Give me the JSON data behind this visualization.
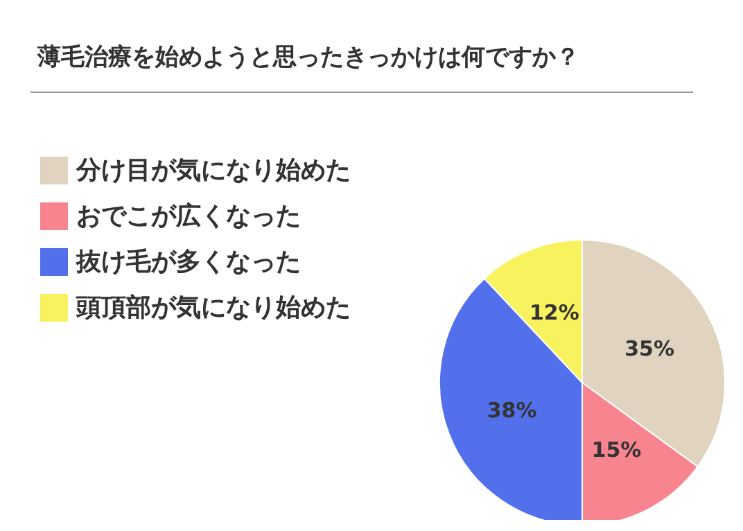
{
  "chart_data": {
    "type": "pie",
    "title": "薄毛治療を始めようと思ったきっかけは何ですか？",
    "categories": [
      "分け目が気になり始めた",
      "おでこが広くなった",
      "抜け毛が多くなった",
      "頭頂部が気になり始めた"
    ],
    "values": [
      35,
      15,
      38,
      12
    ],
    "value_labels": [
      "35%",
      "15%",
      "38%",
      "12%"
    ],
    "colors": [
      "#e0d3bf",
      "#f7848f",
      "#5370ec",
      "#f8f25e"
    ],
    "legend": "left"
  }
}
